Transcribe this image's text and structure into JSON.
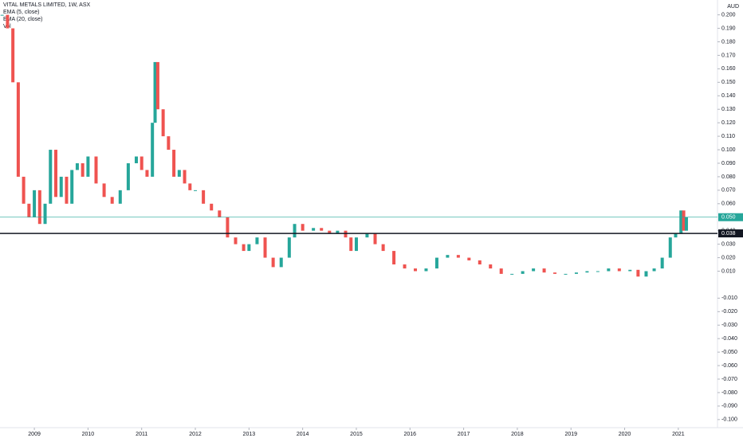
{
  "chart_data": {
    "type": "candlestick",
    "title": "VITAL METALS LIMITED, 1W, ASX",
    "indicators": [
      "EMA (5, close)",
      "EMA (20, close)",
      "Vol"
    ],
    "y_unit": "AUD",
    "x": [
      2008.4,
      2008.5,
      2008.6,
      2008.7,
      2008.8,
      2008.9,
      2009.0,
      2009.1,
      2009.2,
      2009.3,
      2009.4,
      2009.5,
      2009.6,
      2009.7,
      2009.8,
      2009.9,
      2010.0,
      2010.15,
      2010.3,
      2010.45,
      2010.6,
      2010.75,
      2010.9,
      2011.0,
      2011.1,
      2011.2,
      2011.25,
      2011.3,
      2011.4,
      2011.5,
      2011.6,
      2011.7,
      2011.8,
      2011.9,
      2012.0,
      2012.15,
      2012.3,
      2012.45,
      2012.6,
      2012.75,
      2012.9,
      2013.0,
      2013.15,
      2013.3,
      2013.45,
      2013.6,
      2013.75,
      2013.85,
      2014.0,
      2014.2,
      2014.35,
      2014.5,
      2014.65,
      2014.8,
      2014.9,
      2015.0,
      2015.2,
      2015.35,
      2015.5,
      2015.7,
      2015.9,
      2016.1,
      2016.3,
      2016.5,
      2016.7,
      2016.9,
      2017.1,
      2017.3,
      2017.5,
      2017.7,
      2017.9,
      2018.1,
      2018.3,
      2018.5,
      2018.7,
      2018.9,
      2019.1,
      2019.3,
      2019.5,
      2019.7,
      2019.9,
      2020.1,
      2020.25,
      2020.4,
      2020.55,
      2020.7,
      2020.85,
      2020.95,
      2021.05,
      2021.1,
      2021.15
    ],
    "series": [
      {
        "name": "close",
        "up_color": "#26a69a",
        "down_color": "#ef5350",
        "values": [
          0.2,
          0.19,
          0.15,
          0.08,
          0.06,
          0.05,
          0.07,
          0.045,
          0.06,
          0.1,
          0.065,
          0.08,
          0.06,
          0.085,
          0.09,
          0.08,
          0.095,
          0.075,
          0.065,
          0.06,
          0.07,
          0.09,
          0.095,
          0.085,
          0.08,
          0.12,
          0.165,
          0.13,
          0.11,
          0.1,
          0.08,
          0.085,
          0.075,
          0.07,
          0.07,
          0.06,
          0.055,
          0.05,
          0.035,
          0.03,
          0.025,
          0.03,
          0.035,
          0.02,
          0.013,
          0.02,
          0.035,
          0.045,
          0.04,
          0.042,
          0.04,
          0.038,
          0.04,
          0.035,
          0.025,
          0.035,
          0.038,
          0.03,
          0.025,
          0.015,
          0.012,
          0.01,
          0.012,
          0.02,
          0.022,
          0.02,
          0.018,
          0.015,
          0.012,
          0.008,
          0.008,
          0.01,
          0.012,
          0.009,
          0.008,
          0.008,
          0.009,
          0.01,
          0.01,
          0.012,
          0.01,
          0.011,
          0.006,
          0.01,
          0.012,
          0.02,
          0.035,
          0.038,
          0.055,
          0.04,
          0.05
        ]
      }
    ],
    "price_lines": [
      {
        "value": 0.05,
        "label": "0.050",
        "color": "#26a69a"
      },
      {
        "value": 0.038,
        "label": "0.038",
        "color": "#131722"
      }
    ],
    "xlim": [
      2008.36,
      2021.73
    ],
    "xticks": [
      2009,
      2010,
      2011,
      2012,
      2013,
      2014,
      2015,
      2016,
      2017,
      2018,
      2019,
      2020,
      2021
    ],
    "ylim": [
      -0.106,
      0.211
    ],
    "yticks": [
      {
        "value": 0.2,
        "label": "0.200"
      },
      {
        "value": 0.19,
        "label": "0.190"
      },
      {
        "value": 0.18,
        "label": "0.180"
      },
      {
        "value": 0.17,
        "label": "0.170"
      },
      {
        "value": 0.16,
        "label": "0.160"
      },
      {
        "value": 0.15,
        "label": "0.150"
      },
      {
        "value": 0.14,
        "label": "0.140"
      },
      {
        "value": 0.13,
        "label": "0.130"
      },
      {
        "value": 0.12,
        "label": "0.120"
      },
      {
        "value": 0.11,
        "label": "0.110"
      },
      {
        "value": 0.1,
        "label": "0.100"
      },
      {
        "value": 0.09,
        "label": "0.090"
      },
      {
        "value": 0.08,
        "label": "0.080"
      },
      {
        "value": 0.07,
        "label": "0.070"
      },
      {
        "value": 0.06,
        "label": "0.060"
      },
      {
        "value": 0.04,
        "label": "0.040"
      },
      {
        "value": 0.03,
        "label": "0.030"
      },
      {
        "value": 0.02,
        "label": "0.020"
      },
      {
        "value": 0.01,
        "label": "0.010"
      },
      {
        "value": -0.01,
        "label": "-0.010"
      },
      {
        "value": -0.02,
        "label": "-0.020"
      },
      {
        "value": -0.03,
        "label": "-0.030"
      },
      {
        "value": -0.04,
        "label": "-0.040"
      },
      {
        "value": -0.05,
        "label": "-0.050"
      },
      {
        "value": -0.06,
        "label": "-0.060"
      },
      {
        "value": -0.07,
        "label": "-0.070"
      },
      {
        "value": -0.08,
        "label": "-0.080"
      },
      {
        "value": -0.09,
        "label": "-0.090"
      },
      {
        "value": -0.1,
        "label": "-0.100"
      }
    ]
  }
}
